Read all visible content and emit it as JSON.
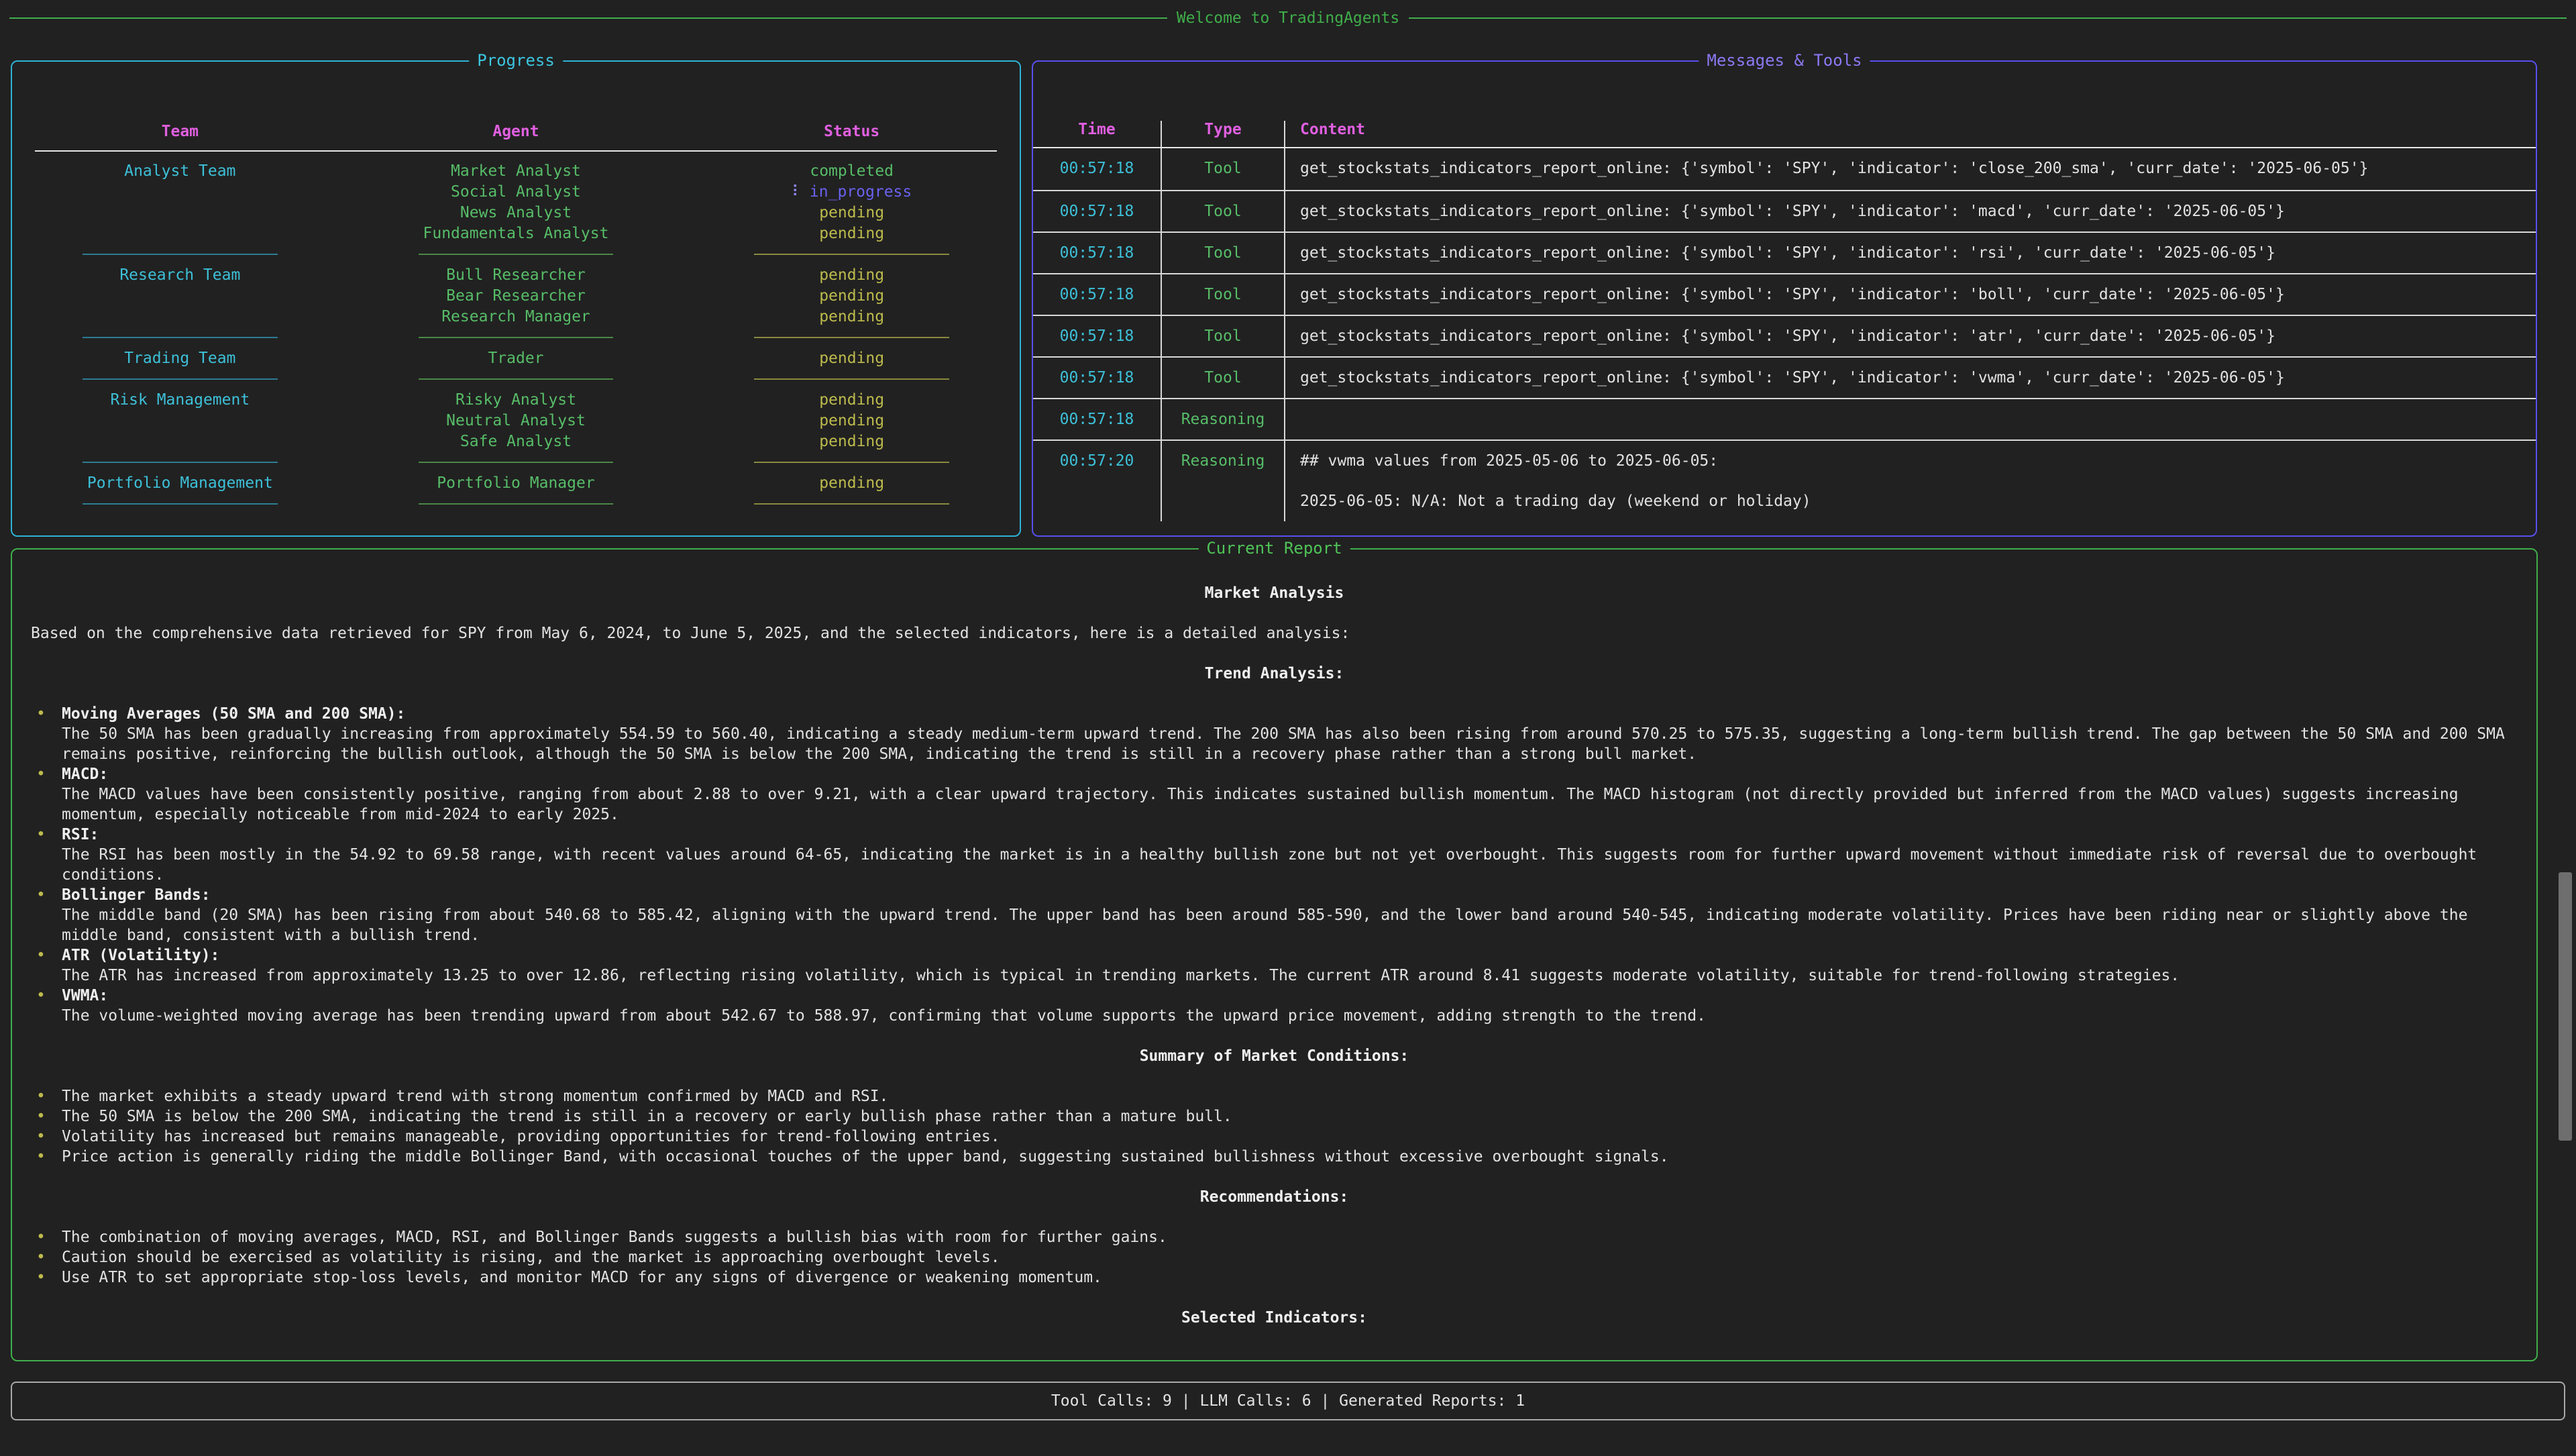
{
  "banner": {
    "title": "Welcome to TradingAgents"
  },
  "colors": {
    "background": "#212121",
    "green_accent": "#3fae4a",
    "cyan_accent": "#2eb3d4",
    "violet_accent": "#584fef",
    "magenta_header": "#e05fe0",
    "yellow_pending": "#bdbb4d",
    "status_completed": "#57bd68",
    "status_in_progress": "#6a62f0"
  },
  "progress": {
    "title": "Progress",
    "headers": [
      "Team",
      "Agent",
      "Status"
    ],
    "spinner": "⠇",
    "groups": [
      {
        "team": "Analyst Team",
        "agents": [
          {
            "name": "Market Analyst",
            "status": "completed"
          },
          {
            "name": "Social Analyst",
            "status": "in_progress"
          },
          {
            "name": "News Analyst",
            "status": "pending"
          },
          {
            "name": "Fundamentals Analyst",
            "status": "pending"
          }
        ]
      },
      {
        "team": "Research Team",
        "agents": [
          {
            "name": "Bull Researcher",
            "status": "pending"
          },
          {
            "name": "Bear Researcher",
            "status": "pending"
          },
          {
            "name": "Research Manager",
            "status": "pending"
          }
        ]
      },
      {
        "team": "Trading Team",
        "agents": [
          {
            "name": "Trader",
            "status": "pending"
          }
        ]
      },
      {
        "team": "Risk Management",
        "agents": [
          {
            "name": "Risky Analyst",
            "status": "pending"
          },
          {
            "name": "Neutral Analyst",
            "status": "pending"
          },
          {
            "name": "Safe Analyst",
            "status": "pending"
          }
        ]
      },
      {
        "team": "Portfolio Management",
        "agents": [
          {
            "name": "Portfolio Manager",
            "status": "pending"
          }
        ]
      }
    ]
  },
  "messages": {
    "title": "Messages & Tools",
    "headers": [
      "Time",
      "Type",
      "Content"
    ],
    "rows": [
      {
        "time": "00:57:18",
        "type": "Tool",
        "content": [
          "get_stockstats_indicators_report_online: {'symbol': 'SPY', 'indicator': 'close_200_sma', 'curr_date': '2025-06-05'}"
        ]
      },
      {
        "time": "00:57:18",
        "type": "Tool",
        "content": [
          "get_stockstats_indicators_report_online: {'symbol': 'SPY', 'indicator': 'macd', 'curr_date': '2025-06-05'}"
        ]
      },
      {
        "time": "00:57:18",
        "type": "Tool",
        "content": [
          "get_stockstats_indicators_report_online: {'symbol': 'SPY', 'indicator': 'rsi', 'curr_date': '2025-06-05'}"
        ]
      },
      {
        "time": "00:57:18",
        "type": "Tool",
        "content": [
          "get_stockstats_indicators_report_online: {'symbol': 'SPY', 'indicator': 'boll', 'curr_date': '2025-06-05'}"
        ]
      },
      {
        "time": "00:57:18",
        "type": "Tool",
        "content": [
          "get_stockstats_indicators_report_online: {'symbol': 'SPY', 'indicator': 'atr', 'curr_date': '2025-06-05'}"
        ]
      },
      {
        "time": "00:57:18",
        "type": "Tool",
        "content": [
          "get_stockstats_indicators_report_online: {'symbol': 'SPY', 'indicator': 'vwma', 'curr_date': '2025-06-05'}"
        ]
      },
      {
        "time": "00:57:18",
        "type": "Reasoning",
        "content": [
          ""
        ]
      },
      {
        "time": "00:57:20",
        "type": "Reasoning",
        "content": [
          "## vwma values from 2025-05-06 to 2025-06-05:",
          "",
          "2025-06-05: N/A: Not a trading day (weekend or holiday)"
        ]
      }
    ]
  },
  "report": {
    "title": "Current Report",
    "heading": "Market Analysis",
    "intro": "Based on the comprehensive data retrieved for SPY from May 6, 2024, to June 5, 2025, and the selected indicators, here is a detailed analysis:",
    "sections": [
      {
        "heading": "Trend Analysis:",
        "bullets": [
          {
            "label": "Moving Averages (50 SMA and 200 SMA):",
            "text": "The 50 SMA has been gradually increasing from approximately 554.59 to 560.40, indicating a steady medium-term upward trend. The 200 SMA has also been rising from around 570.25 to 575.35, suggesting a long-term bullish trend. The gap between the 50 SMA and 200 SMA remains positive, reinforcing the bullish outlook, although the 50 SMA is below the 200 SMA, indicating the trend is still in a recovery phase rather than a strong bull market."
          },
          {
            "label": "MACD:",
            "text": "The MACD values have been consistently positive, ranging from about 2.88 to over 9.21, with a clear upward trajectory. This indicates sustained bullish momentum. The MACD histogram (not directly provided but inferred from the MACD values) suggests increasing momentum, especially noticeable from mid-2024 to early 2025."
          },
          {
            "label": "RSI:",
            "text": "The RSI has been mostly in the 54.92 to 69.58 range, with recent values around 64-65, indicating the market is in a healthy bullish zone but not yet overbought. This suggests room for further upward movement without immediate risk of reversal due to overbought conditions."
          },
          {
            "label": "Bollinger Bands:",
            "text": "The middle band (20 SMA) has been rising from about 540.68 to 585.42, aligning with the upward trend. The upper band has been around 585-590, and the lower band around 540-545, indicating moderate volatility. Prices have been riding near or slightly above the middle band, consistent with a bullish trend."
          },
          {
            "label": "ATR (Volatility):",
            "text": "The ATR has increased from approximately 13.25 to over 12.86, reflecting rising volatility, which is typical in trending markets. The current ATR around 8.41 suggests moderate volatility, suitable for trend-following strategies."
          },
          {
            "label": "VWMA:",
            "text": "The volume-weighted moving average has been trending upward from about 542.67 to 588.97, confirming that volume supports the upward price movement, adding strength to the trend."
          }
        ]
      },
      {
        "heading": "Summary of Market Conditions:",
        "bullets": [
          {
            "text": "The market exhibits a steady upward trend with strong momentum confirmed by MACD and RSI."
          },
          {
            "text": "The 50 SMA is below the 200 SMA, indicating the trend is still in a recovery or early bullish phase rather than a mature bull."
          },
          {
            "text": "Volatility has increased but remains manageable, providing opportunities for trend-following entries."
          },
          {
            "text": "Price action is generally riding the middle Bollinger Band, with occasional touches of the upper band, suggesting sustained bullishness without excessive overbought signals."
          }
        ]
      },
      {
        "heading": "Recommendations:",
        "bullets": [
          {
            "text": "The combination of moving averages, MACD, RSI, and Bollinger Bands suggests a bullish bias with room for further gains."
          },
          {
            "text": "Caution should be exercised as volatility is rising, and the market is approaching overbought levels."
          },
          {
            "text": "Use ATR to set appropriate stop-loss levels, and monitor MACD for any signs of divergence or weakening momentum."
          }
        ]
      },
      {
        "heading": "Selected Indicators:",
        "bullets": []
      }
    ]
  },
  "statusbar": {
    "text": "Tool Calls: 9 | LLM Calls: 6 | Generated Reports: 1"
  }
}
